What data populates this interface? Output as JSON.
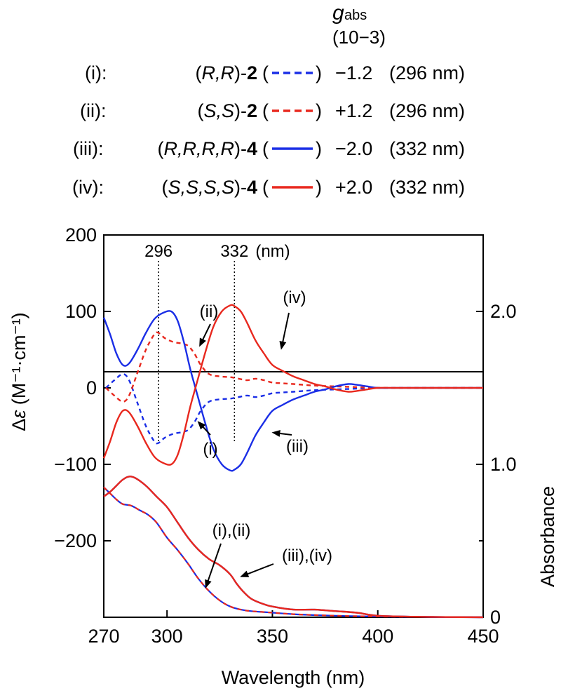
{
  "chart_data": {
    "type": "line",
    "title": "",
    "header": {
      "symbol": "g",
      "subscript": "abs",
      "unit": "(10−3)"
    },
    "legend": [
      {
        "id": "i",
        "label": "(i):",
        "compound_pre": "(",
        "stereo": "R,R",
        "compound_post": ")-",
        "number": "2",
        "paren_open": "(",
        "paren_close": ")",
        "line_style": "dashed",
        "color": "#1a2ee6",
        "g_abs": "−1.2",
        "wavelength": "(296 nm)"
      },
      {
        "id": "ii",
        "label": "(ii):",
        "compound_pre": "(",
        "stereo": "S,S",
        "compound_post": ")-",
        "number": "2",
        "paren_open": "(",
        "paren_close": ")",
        "line_style": "dashed",
        "color": "#e8281e",
        "g_abs": "+1.2",
        "wavelength": "(296 nm)"
      },
      {
        "id": "iii",
        "label": "(iii):",
        "compound_pre": "(",
        "stereo": "R,R,R,R",
        "compound_post": ")-",
        "number": "4",
        "paren_open": "(",
        "paren_close": ")",
        "line_style": "solid",
        "color": "#1a2ee6",
        "g_abs": "−2.0",
        "wavelength": "(332 nm)"
      },
      {
        "id": "iv",
        "label": "(iv):",
        "compound_pre": "(",
        "stereo": "S,S,S,S",
        "compound_post": ")-",
        "number": "4",
        "paren_open": "(",
        "paren_close": ")",
        "line_style": "solid",
        "color": "#e8281e",
        "g_abs": "+2.0",
        "wavelength": "(332 nm)"
      }
    ],
    "xlabel": "Wavelength (nm)",
    "ylabel_left": {
      "prefix": "Δ",
      "symbol": "ε",
      "unit": " (M⁻¹·cm⁻¹)"
    },
    "ylabel_right": "Absorbance",
    "xlim": [
      270,
      450
    ],
    "ylim_left": [
      -300,
      200
    ],
    "ylim_right": [
      0,
      2.5
    ],
    "xticks": [
      270,
      300,
      350,
      400,
      450
    ],
    "xtick_labels": [
      "270",
      "300",
      "350",
      "400",
      "450"
    ],
    "yticks_left": [
      200,
      100,
      0,
      -100,
      -200
    ],
    "ytick_labels_left": [
      "200",
      "100",
      "0",
      "−100",
      "−200"
    ],
    "yticks_right": [
      0,
      1.0,
      2.0
    ],
    "ytick_labels_right": [
      "0",
      "1.0",
      "2.0"
    ],
    "ref_lines": [
      {
        "x": 296,
        "label": "296"
      },
      {
        "x": 332,
        "label": "332"
      }
    ],
    "ref_unit": "(nm)",
    "cd_series": [
      {
        "id": "i",
        "style": "dashed",
        "color": "#1a2ee6",
        "x": [
          271,
          275,
          279,
          282,
          286,
          290,
          294,
          296,
          299,
          303,
          307,
          310,
          313,
          316,
          320,
          325,
          330,
          334,
          338,
          342,
          346,
          350,
          355,
          360,
          370,
          380,
          390,
          400,
          420,
          450
        ],
        "y": [
          0,
          10,
          18,
          10,
          -20,
          -50,
          -70,
          -72,
          -65,
          -60,
          -58,
          -55,
          -45,
          -30,
          -18,
          -15,
          -14,
          -12,
          -10,
          -12,
          -10,
          -7,
          -6,
          -5,
          -3,
          -2,
          -1,
          0,
          0,
          0
        ]
      },
      {
        "id": "ii",
        "style": "dashed",
        "color": "#e8281e",
        "x": [
          271,
          275,
          279,
          282,
          286,
          290,
          294,
          296,
          299,
          303,
          307,
          310,
          313,
          316,
          320,
          325,
          330,
          334,
          338,
          342,
          346,
          350,
          355,
          360,
          370,
          380,
          390,
          400,
          420,
          450
        ],
        "y": [
          0,
          -10,
          -18,
          -10,
          20,
          50,
          70,
          72,
          65,
          60,
          58,
          55,
          45,
          30,
          18,
          15,
          14,
          12,
          10,
          12,
          10,
          7,
          6,
          5,
          3,
          2,
          1,
          0,
          0,
          0
        ]
      },
      {
        "id": "iii",
        "style": "solid",
        "color": "#1a2ee6",
        "x": [
          270,
          273,
          276,
          279,
          282,
          286,
          290,
          294,
          298,
          302,
          305,
          308,
          311,
          314,
          318,
          322,
          326,
          330,
          332,
          335,
          338,
          342,
          346,
          350,
          355,
          360,
          365,
          370,
          375,
          380,
          386,
          390,
          395,
          400,
          410,
          420,
          430,
          450
        ],
        "y": [
          92,
          70,
          45,
          30,
          32,
          50,
          72,
          90,
          98,
          100,
          88,
          60,
          25,
          -5,
          -45,
          -80,
          -100,
          -108,
          -107,
          -100,
          -85,
          -62,
          -45,
          -30,
          -22,
          -15,
          -10,
          -5,
          -2,
          2,
          5,
          4,
          2,
          0,
          0,
          0,
          0,
          0
        ]
      },
      {
        "id": "iv",
        "style": "solid",
        "color": "#e8281e",
        "x": [
          270,
          273,
          276,
          279,
          282,
          286,
          290,
          294,
          298,
          302,
          305,
          308,
          311,
          314,
          318,
          322,
          326,
          330,
          332,
          335,
          338,
          342,
          346,
          350,
          355,
          360,
          365,
          370,
          375,
          380,
          386,
          390,
          395,
          400,
          410,
          420,
          430,
          450
        ],
        "y": [
          -92,
          -70,
          -45,
          -30,
          -32,
          -50,
          -72,
          -90,
          -98,
          -100,
          -88,
          -60,
          -25,
          5,
          45,
          80,
          100,
          108,
          107,
          100,
          85,
          62,
          45,
          30,
          22,
          15,
          10,
          5,
          2,
          -2,
          -5,
          -4,
          -2,
          0,
          0,
          0,
          0,
          0
        ]
      }
    ],
    "abs_series": [
      {
        "id": "i,ii",
        "style": "dashed",
        "colors": [
          "#1a2ee6",
          "#e8281e"
        ],
        "x": [
          270,
          273,
          276,
          279,
          283,
          287,
          291,
          295,
          300,
          305,
          310,
          315,
          320,
          325,
          330,
          335,
          340,
          350,
          360,
          380,
          400,
          450
        ],
        "y": [
          0.85,
          0.81,
          0.77,
          0.74,
          0.73,
          0.7,
          0.67,
          0.62,
          0.52,
          0.44,
          0.35,
          0.25,
          0.17,
          0.11,
          0.07,
          0.05,
          0.04,
          0.03,
          0.02,
          0.01,
          0.005,
          0
        ]
      },
      {
        "id": "iii,iv",
        "style": "solid",
        "colors": [
          "#1a2ee6",
          "#e8281e"
        ],
        "x": [
          270,
          273,
          276,
          279,
          282,
          285,
          290,
          295,
          300,
          305,
          310,
          315,
          320,
          325,
          330,
          333,
          336,
          340,
          345,
          350,
          360,
          370,
          380,
          390,
          400,
          420,
          450
        ],
        "y": [
          0.79,
          0.82,
          0.86,
          0.9,
          0.92,
          0.91,
          0.86,
          0.79,
          0.72,
          0.62,
          0.52,
          0.44,
          0.38,
          0.34,
          0.28,
          0.22,
          0.17,
          0.12,
          0.09,
          0.07,
          0.05,
          0.05,
          0.04,
          0.03,
          0.01,
          0.003,
          0
        ]
      }
    ],
    "annotations": [
      {
        "text": "(ii)",
        "target": [
          315,
          52
        ]
      },
      {
        "text": "(i)",
        "target": [
          314,
          -42
        ]
      },
      {
        "text": "(iv)",
        "target": [
          354,
          48
        ]
      },
      {
        "text": "(iii)",
        "target": [
          349,
          -58
        ]
      },
      {
        "text": "(i),(ii)",
        "target": [
          318,
          0.18
        ]
      },
      {
        "text": "(iii),(iv)",
        "target": [
          334,
          0.26
        ]
      }
    ]
  }
}
